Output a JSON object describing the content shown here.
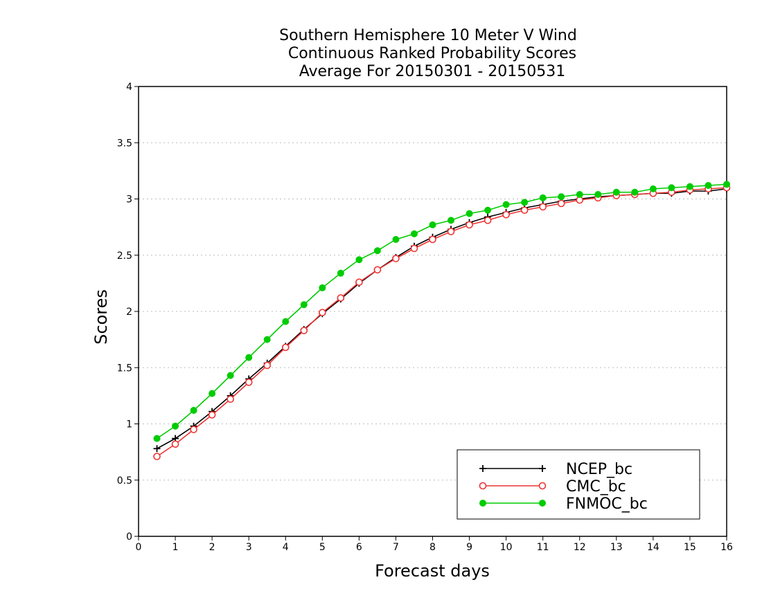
{
  "chart_data": {
    "type": "line",
    "title_lines": [
      "Southern Hemisphere 10 Meter V Wind",
      "Continuous Ranked Probability Scores",
      "Average For 20150301 - 20150531"
    ],
    "xlabel": "Forecast days",
    "ylabel": "Scores",
    "xlim": [
      0,
      16
    ],
    "ylim": [
      0,
      4
    ],
    "xticks": [
      "0",
      "1",
      "2",
      "3",
      "4",
      "5",
      "6",
      "7",
      "8",
      "9",
      "10",
      "11",
      "12",
      "13",
      "14",
      "15",
      "16"
    ],
    "yticks": [
      "0",
      "0.5",
      "1",
      "1.5",
      "2",
      "2.5",
      "3",
      "3.5",
      "4"
    ],
    "grid": "horizontal dotted",
    "legend_position": "bottom-right",
    "x": [
      0.5,
      1,
      1.5,
      2,
      2.5,
      3,
      3.5,
      4,
      4.5,
      5,
      5.5,
      6,
      6.5,
      7,
      7.5,
      8,
      8.5,
      9,
      9.5,
      10,
      10.5,
      11,
      11.5,
      12,
      12.5,
      13,
      13.5,
      14,
      14.5,
      15,
      15.5,
      16
    ],
    "series": [
      {
        "name": "NCEP_bc",
        "color": "#000000",
        "marker": "plus",
        "values": [
          0.78,
          0.87,
          0.98,
          1.11,
          1.25,
          1.4,
          1.54,
          1.69,
          1.84,
          1.98,
          2.11,
          2.25,
          2.37,
          2.48,
          2.58,
          2.66,
          2.73,
          2.79,
          2.84,
          2.88,
          2.92,
          2.95,
          2.98,
          3.0,
          3.02,
          3.03,
          3.04,
          3.05,
          3.05,
          3.07,
          3.07,
          3.09
        ]
      },
      {
        "name": "CMC_bc",
        "color": "#ee3333",
        "marker": "open-circle",
        "values": [
          0.71,
          0.82,
          0.95,
          1.08,
          1.22,
          1.37,
          1.52,
          1.68,
          1.83,
          1.99,
          2.12,
          2.26,
          2.37,
          2.47,
          2.56,
          2.64,
          2.71,
          2.77,
          2.81,
          2.86,
          2.9,
          2.93,
          2.96,
          2.99,
          3.01,
          3.03,
          3.04,
          3.05,
          3.06,
          3.08,
          3.09,
          3.1
        ]
      },
      {
        "name": "FNMOC_bc",
        "color": "#00cc00",
        "marker": "filled-circle",
        "values": [
          0.87,
          0.98,
          1.12,
          1.27,
          1.43,
          1.59,
          1.75,
          1.91,
          2.06,
          2.21,
          2.34,
          2.46,
          2.54,
          2.64,
          2.69,
          2.77,
          2.81,
          2.87,
          2.9,
          2.95,
          2.97,
          3.01,
          3.02,
          3.04,
          3.04,
          3.06,
          3.06,
          3.09,
          3.1,
          3.11,
          3.12,
          3.13
        ]
      }
    ]
  }
}
